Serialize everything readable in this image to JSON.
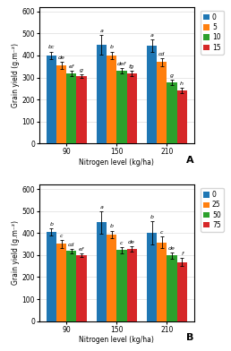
{
  "chart_data": [
    {
      "type": "bar",
      "annotations": [
        "A"
      ],
      "categories": [
        "90",
        "150",
        "210"
      ],
      "xlabel": "Nitrogen level (kg/ha)",
      "ylabel": "Grain yield (g.m⁻²)",
      "ylim": [
        0,
        620
      ],
      "yticks": [
        0,
        100,
        200,
        300,
        400,
        500,
        600
      ],
      "grid": true,
      "legend": "upper left",
      "series": [
        {
          "name": "0",
          "values": [
            400,
            450,
            445
          ],
          "errors": [
            18,
            45,
            28
          ],
          "annotations": [
            "bc",
            "a",
            "a"
          ]
        },
        {
          "name": "5",
          "values": [
            355,
            400,
            370
          ],
          "errors": [
            15,
            18,
            18
          ],
          "annotations": [
            "de",
            "b",
            "cd"
          ]
        },
        {
          "name": "10",
          "values": [
            320,
            330,
            278
          ],
          "errors": [
            12,
            12,
            12
          ],
          "annotations": [
            "ef",
            "def",
            "g"
          ]
        },
        {
          "name": "15",
          "values": [
            308,
            320,
            242
          ],
          "errors": [
            8,
            12,
            12
          ],
          "annotations": [
            "g",
            "fg",
            "h"
          ]
        }
      ]
    },
    {
      "type": "bar",
      "annotations": [
        "B"
      ],
      "categories": [
        "90",
        "150",
        "210"
      ],
      "xlabel": "Nitrogen level (kg/ha)",
      "ylabel": "Grain yield (g.m⁻²)",
      "ylim": [
        0,
        620
      ],
      "yticks": [
        0,
        100,
        200,
        300,
        400,
        500,
        600
      ],
      "grid": true,
      "legend": "upper left",
      "series": [
        {
          "name": "0",
          "values": [
            405,
            448,
            402
          ],
          "errors": [
            18,
            50,
            52
          ],
          "annotations": [
            "b",
            "a",
            "b"
          ]
        },
        {
          "name": "25",
          "values": [
            352,
            393,
            358
          ],
          "errors": [
            18,
            18,
            28
          ],
          "annotations": [
            "c",
            "b",
            "c"
          ]
        },
        {
          "name": "50",
          "values": [
            318,
            322,
            298
          ],
          "errors": [
            10,
            15,
            15
          ],
          "annotations": [
            "cd",
            "c",
            "de"
          ]
        },
        {
          "name": "75",
          "values": [
            300,
            328,
            268
          ],
          "errors": [
            8,
            12,
            18
          ],
          "annotations": [
            "ef",
            "de",
            "f"
          ]
        }
      ]
    }
  ]
}
